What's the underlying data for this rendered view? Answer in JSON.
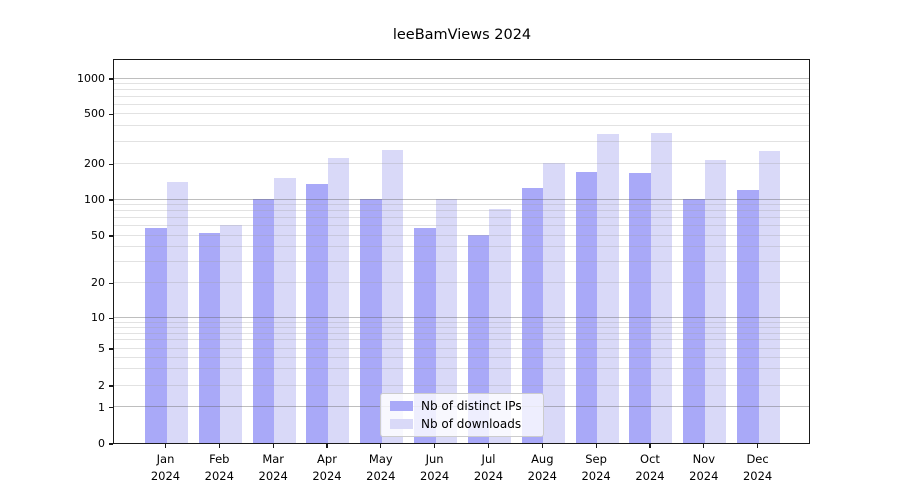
{
  "title": "leeBamViews 2024",
  "chart_data": {
    "type": "bar",
    "title": "leeBamViews 2024",
    "categories": [
      "Jan\n2024",
      "Feb\n2024",
      "Mar\n2024",
      "Apr\n2024",
      "May\n2024",
      "Jun\n2024",
      "Jul\n2024",
      "Aug\n2024",
      "Sep\n2024",
      "Oct\n2024",
      "Nov\n2024",
      "Dec\n2024"
    ],
    "series": [
      {
        "name": "Nb of distinct IPs",
        "color": "#a9a9f8",
        "values": [
          57,
          52,
          100,
          135,
          100,
          57,
          50,
          124,
          170,
          166,
          100,
          120
        ]
      },
      {
        "name": "Nb of downloads",
        "color": "#d9d9f8",
        "values": [
          140,
          61,
          150,
          220,
          257,
          100,
          83,
          200,
          340,
          352,
          213,
          253
        ]
      }
    ],
    "yscale": "symlog",
    "ylim": [
      0,
      1470
    ],
    "yticks": [
      0,
      1,
      2,
      5,
      10,
      20,
      50,
      100,
      200,
      500,
      1000
    ],
    "minor_grid_values": [
      3,
      4,
      6,
      7,
      8,
      9,
      30,
      40,
      60,
      70,
      80,
      90,
      300,
      400,
      600,
      700,
      800,
      900
    ],
    "major_grid_values": [
      1,
      10,
      100,
      1000
    ],
    "grid": "both",
    "legend_position": "lower-center-inside"
  },
  "colors": {
    "bar_ips": "#a9a9f8",
    "bar_downloads": "#d9d9f8",
    "major_grid": "rgba(100,100,100,0.42)",
    "minor_grid": "rgba(160,160,160,0.30)",
    "spine": "#1a1a1a",
    "background": "#ffffff"
  }
}
